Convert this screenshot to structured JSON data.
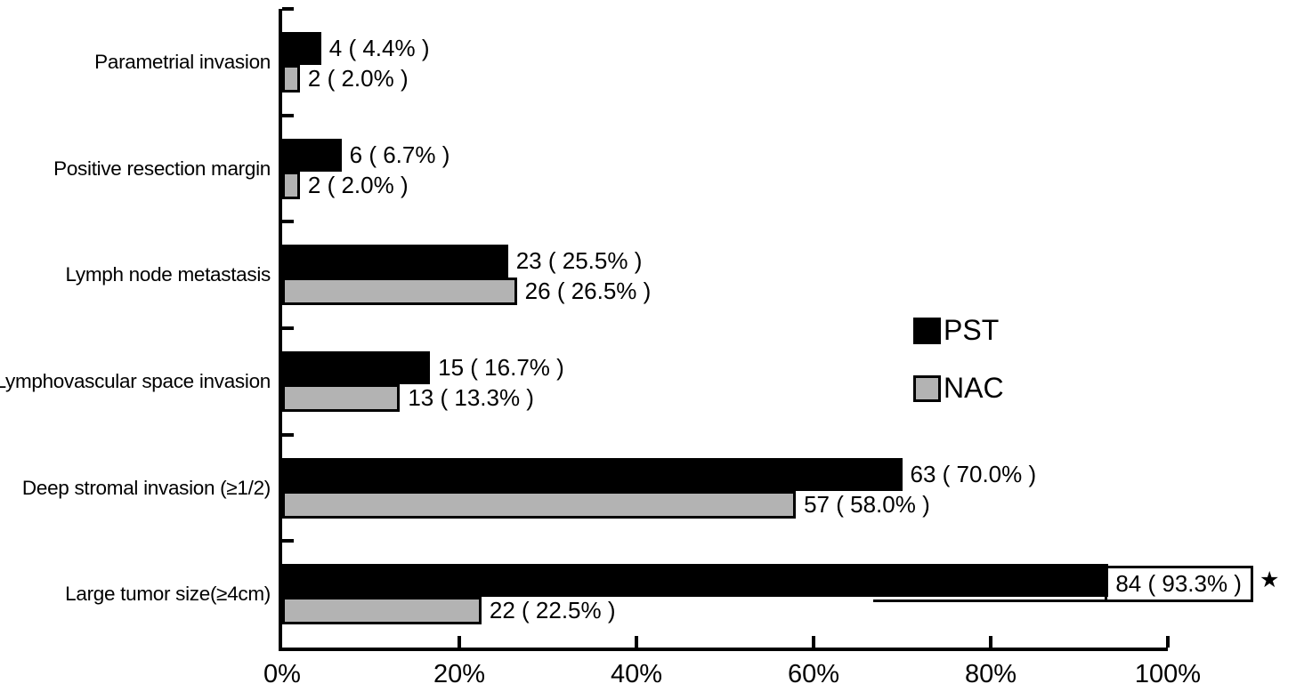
{
  "chart_data": {
    "type": "bar",
    "orientation": "horizontal",
    "title": "",
    "xlabel": "",
    "ylabel": "",
    "xlim": [
      0,
      100
    ],
    "x_ticks": [
      "0%",
      "20%",
      "40%",
      "60%",
      "80%",
      "100%"
    ],
    "grid": false,
    "legend_position": "right-middle",
    "categories": [
      "Parametrial invasion",
      "Positive resection margin",
      "Lymph node metastasis",
      "Lymphovascular space invasion",
      "Deep stromal invasion (≥1/2)",
      "Large tumor size(≥4cm)"
    ],
    "series": [
      {
        "name": "PST",
        "color": "#000000",
        "counts": [
          4,
          6,
          23,
          15,
          63,
          84
        ],
        "percents": [
          4.4,
          6.7,
          25.5,
          16.7,
          70.0,
          93.3
        ],
        "labels": [
          "4 ( 4.4% )",
          "6 ( 6.7% )",
          "23 ( 25.5% )",
          "15 ( 16.7% )",
          "63 ( 70.0% )",
          "84 ( 93.3% )"
        ]
      },
      {
        "name": "NAC",
        "color": "#b3b3b3",
        "counts": [
          2,
          2,
          26,
          13,
          57,
          22
        ],
        "percents": [
          2.0,
          2.0,
          26.5,
          13.3,
          58.0,
          22.5
        ],
        "labels": [
          "2 ( 2.0% )",
          "2 ( 2.0% )",
          "26 ( 26.5% )",
          "13 ( 13.3% )",
          "57 ( 58.0% )",
          "22 ( 22.5% )"
        ]
      }
    ],
    "annotations": [
      {
        "series": "PST",
        "category": "Large tumor size(≥4cm)",
        "symbol": "★",
        "style": "boxed value label with underline bracket and star marker"
      }
    ]
  }
}
